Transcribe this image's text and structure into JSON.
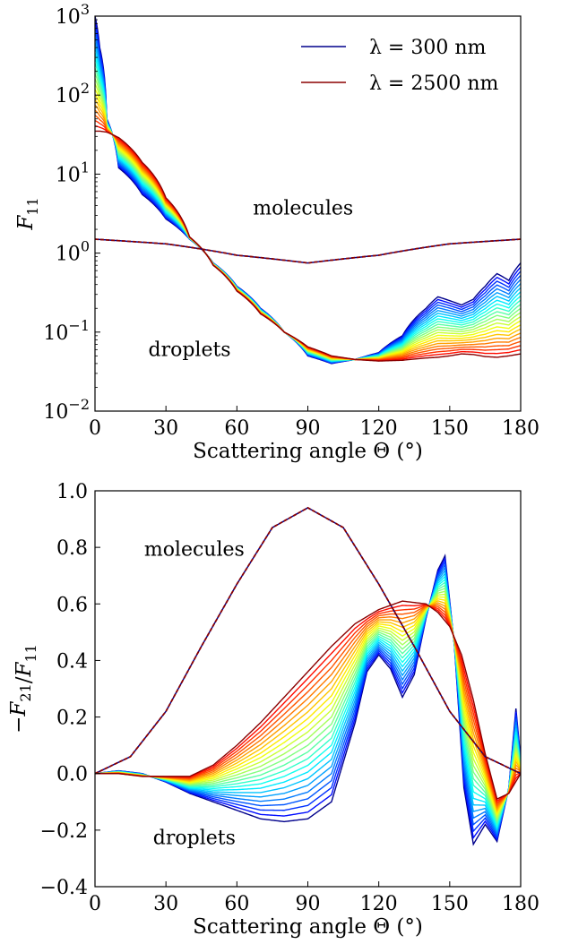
{
  "chart_data": [
    {
      "type": "line",
      "panel": "top",
      "ylabel": "F11",
      "xlabel": "Scattering angle Θ (°)",
      "yscale": "log",
      "xlim": [
        0,
        180
      ],
      "ylim": [
        0.01,
        1000
      ],
      "x_ticks": [
        "0",
        "30",
        "60",
        "90",
        "120",
        "150",
        "180"
      ],
      "y_ticks": [
        {
          "base": "10",
          "exp": "−2"
        },
        {
          "base": "10",
          "exp": "−1"
        },
        {
          "base": "10",
          "exp": "0"
        },
        {
          "base": "10",
          "exp": "1"
        },
        {
          "base": "10",
          "exp": "2"
        },
        {
          "base": "10",
          "exp": "3"
        }
      ],
      "legend": {
        "location": "top-right",
        "entries": [
          {
            "label": "λ = 300 nm",
            "color": "#00008b"
          },
          {
            "label": "λ = 2500 nm",
            "color": "#8b0000"
          }
        ]
      },
      "annotations": [
        "molecules",
        "droplets"
      ],
      "wavelength_count": 23,
      "colormap": "jet",
      "molecules_series": {
        "name": "molecules",
        "style": "dashed",
        "x": [
          0,
          30,
          60,
          90,
          120,
          150,
          180
        ],
        "y": [
          1.5,
          1.31,
          0.94,
          0.75,
          0.94,
          1.31,
          1.5
        ]
      },
      "droplet_series": [
        {
          "name": "λ = 300 nm",
          "color": "#00008b",
          "x": [
            0,
            2,
            5,
            10,
            20,
            30,
            40,
            50,
            60,
            70,
            80,
            90,
            100,
            110,
            120,
            130,
            140,
            145,
            150,
            155,
            160,
            165,
            170,
            175,
            180
          ],
          "y": [
            1000,
            400,
            50,
            12,
            5.5,
            2.7,
            1.5,
            0.75,
            0.38,
            0.2,
            0.1,
            0.05,
            0.04,
            0.045,
            0.055,
            0.09,
            0.2,
            0.28,
            0.25,
            0.22,
            0.26,
            0.38,
            0.55,
            0.45,
            0.75
          ]
        },
        {
          "name": "λ = 2500 nm",
          "color": "#8b0000",
          "x": [
            0,
            2,
            5,
            10,
            20,
            30,
            40,
            50,
            60,
            70,
            80,
            90,
            100,
            110,
            120,
            130,
            140,
            145,
            150,
            155,
            160,
            165,
            170,
            175,
            180
          ],
          "y": [
            35,
            35,
            34,
            29,
            14,
            5,
            1.6,
            0.7,
            0.33,
            0.17,
            0.1,
            0.065,
            0.05,
            0.045,
            0.043,
            0.044,
            0.047,
            0.048,
            0.05,
            0.053,
            0.052,
            0.049,
            0.048,
            0.05,
            0.053
          ]
        }
      ]
    },
    {
      "type": "line",
      "panel": "bottom",
      "ylabel": "−F21/F11",
      "xlabel": "Scattering angle Θ (°)",
      "xlim": [
        0,
        180
      ],
      "ylim": [
        -0.4,
        1.0
      ],
      "x_ticks": [
        "0",
        "30",
        "60",
        "90",
        "120",
        "150",
        "180"
      ],
      "y_ticks": [
        "−0.4",
        "−0.2",
        "0.0",
        "0.2",
        "0.4",
        "0.6",
        "0.8",
        "1.0"
      ],
      "annotations": [
        "molecules",
        "droplets"
      ],
      "wavelength_count": 23,
      "colormap": "jet",
      "molecules_series": {
        "name": "molecules",
        "style": "dashed",
        "x": [
          0,
          15,
          30,
          45,
          60,
          75,
          90,
          105,
          120,
          135,
          150,
          165,
          180
        ],
        "y": [
          0.0,
          0.06,
          0.22,
          0.45,
          0.67,
          0.87,
          0.94,
          0.87,
          0.67,
          0.45,
          0.22,
          0.06,
          0.0
        ]
      },
      "droplet_series": [
        {
          "name": "λ = 300 nm",
          "color": "#00008b",
          "x": [
            0,
            10,
            20,
            30,
            40,
            50,
            60,
            70,
            80,
            90,
            100,
            110,
            115,
            120,
            125,
            130,
            135,
            140,
            145,
            148,
            152,
            156,
            160,
            165,
            170,
            175,
            178,
            180
          ],
          "y": [
            0.0,
            0.01,
            0.0,
            -0.03,
            -0.07,
            -0.1,
            -0.13,
            -0.16,
            -0.17,
            -0.16,
            -0.1,
            0.18,
            0.36,
            0.42,
            0.37,
            0.27,
            0.35,
            0.55,
            0.72,
            0.77,
            0.45,
            -0.05,
            -0.25,
            -0.18,
            -0.24,
            -0.05,
            0.23,
            0.05
          ]
        },
        {
          "name": "λ = 2500 nm",
          "color": "#8b0000",
          "x": [
            0,
            10,
            20,
            30,
            40,
            50,
            60,
            70,
            80,
            90,
            100,
            110,
            120,
            130,
            140,
            145,
            150,
            155,
            160,
            165,
            170,
            175,
            180
          ],
          "y": [
            0.0,
            0.0,
            -0.01,
            -0.01,
            -0.01,
            0.03,
            0.1,
            0.18,
            0.27,
            0.36,
            0.45,
            0.53,
            0.58,
            0.61,
            0.6,
            0.57,
            0.52,
            0.42,
            0.26,
            0.07,
            -0.09,
            -0.07,
            0.0
          ]
        }
      ]
    }
  ]
}
